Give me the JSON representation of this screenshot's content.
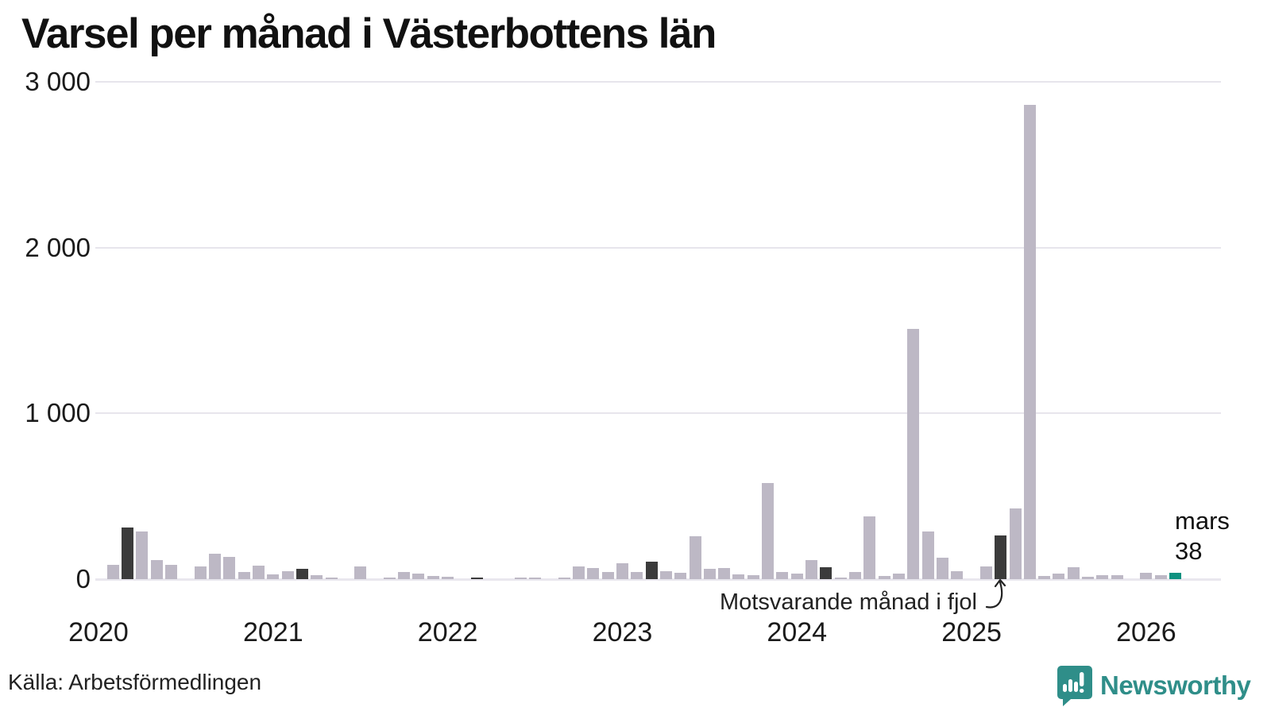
{
  "title": "Varsel per månad i Västerbottens län",
  "source": "Källa: Arbetsförmedlingen",
  "brand": {
    "name": "Newsworthy",
    "color": "#2f8e89"
  },
  "annotation": {
    "text": "Motsvarande månad i fjol"
  },
  "current_label": {
    "month": "mars",
    "value": "38"
  },
  "colors": {
    "bar": "#bdb8c5",
    "last_year_month": "#3b3b3b",
    "current_month": "#0e9180",
    "grid": "#e7e5ec",
    "text": "#111111"
  },
  "chart_data": {
    "type": "bar",
    "title": "Varsel per månad i Västerbottens län",
    "xlabel": "",
    "ylabel": "",
    "ylim": [
      0,
      3000
    ],
    "grid": "horizontal",
    "legend": "none",
    "yticks": [
      {
        "label": "0",
        "value": 0
      },
      {
        "label": "1 000",
        "value": 1000
      },
      {
        "label": "2 000",
        "value": 2000
      },
      {
        "label": "3 000",
        "value": 3000
      }
    ],
    "x_year_labels": [
      "2020",
      "2021",
      "2022",
      "2023",
      "2024",
      "2025",
      "2026"
    ],
    "highlight_x": [
      "2020-03",
      "2021-03",
      "2022-03",
      "2023-03",
      "2024-03",
      "2025-03"
    ],
    "current_x": "2026-03",
    "current_value": 38,
    "annotation_target_x": "2025-03",
    "series": [
      {
        "name": "Varsel per månad",
        "points": [
          {
            "x": "2020-01",
            "y": 0
          },
          {
            "x": "2020-02",
            "y": 85
          },
          {
            "x": "2020-03",
            "y": 310
          },
          {
            "x": "2020-04",
            "y": 290
          },
          {
            "x": "2020-05",
            "y": 115
          },
          {
            "x": "2020-06",
            "y": 85
          },
          {
            "x": "2020-07",
            "y": 0
          },
          {
            "x": "2020-08",
            "y": 75
          },
          {
            "x": "2020-09",
            "y": 155
          },
          {
            "x": "2020-10",
            "y": 135
          },
          {
            "x": "2020-11",
            "y": 45
          },
          {
            "x": "2020-12",
            "y": 80
          },
          {
            "x": "2021-01",
            "y": 30
          },
          {
            "x": "2021-02",
            "y": 48
          },
          {
            "x": "2021-03",
            "y": 60
          },
          {
            "x": "2021-04",
            "y": 24
          },
          {
            "x": "2021-05",
            "y": 10
          },
          {
            "x": "2021-06",
            "y": 0
          },
          {
            "x": "2021-07",
            "y": 77
          },
          {
            "x": "2021-08",
            "y": 0
          },
          {
            "x": "2021-09",
            "y": 10
          },
          {
            "x": "2021-10",
            "y": 43
          },
          {
            "x": "2021-11",
            "y": 35
          },
          {
            "x": "2021-12",
            "y": 21
          },
          {
            "x": "2022-01",
            "y": 14
          },
          {
            "x": "2022-02",
            "y": 0
          },
          {
            "x": "2022-03",
            "y": 10
          },
          {
            "x": "2022-04",
            "y": 0
          },
          {
            "x": "2022-05",
            "y": 0
          },
          {
            "x": "2022-06",
            "y": 11
          },
          {
            "x": "2022-07",
            "y": 5
          },
          {
            "x": "2022-08",
            "y": 0
          },
          {
            "x": "2022-09",
            "y": 8
          },
          {
            "x": "2022-10",
            "y": 75
          },
          {
            "x": "2022-11",
            "y": 67
          },
          {
            "x": "2022-12",
            "y": 45
          },
          {
            "x": "2023-01",
            "y": 95
          },
          {
            "x": "2023-02",
            "y": 41
          },
          {
            "x": "2023-03",
            "y": 105
          },
          {
            "x": "2023-04",
            "y": 49
          },
          {
            "x": "2023-05",
            "y": 40
          },
          {
            "x": "2023-06",
            "y": 260
          },
          {
            "x": "2023-07",
            "y": 64
          },
          {
            "x": "2023-08",
            "y": 65
          },
          {
            "x": "2023-09",
            "y": 29
          },
          {
            "x": "2023-10",
            "y": 25
          },
          {
            "x": "2023-11",
            "y": 580
          },
          {
            "x": "2023-12",
            "y": 45
          },
          {
            "x": "2024-01",
            "y": 32
          },
          {
            "x": "2024-02",
            "y": 115
          },
          {
            "x": "2024-03",
            "y": 70
          },
          {
            "x": "2024-04",
            "y": 11
          },
          {
            "x": "2024-05",
            "y": 45
          },
          {
            "x": "2024-06",
            "y": 380
          },
          {
            "x": "2024-07",
            "y": 19
          },
          {
            "x": "2024-08",
            "y": 32
          },
          {
            "x": "2024-09",
            "y": 1510
          },
          {
            "x": "2024-10",
            "y": 290
          },
          {
            "x": "2024-11",
            "y": 130
          },
          {
            "x": "2024-12",
            "y": 50
          },
          {
            "x": "2025-01",
            "y": 0
          },
          {
            "x": "2025-02",
            "y": 78
          },
          {
            "x": "2025-03",
            "y": 265
          },
          {
            "x": "2025-04",
            "y": 425
          },
          {
            "x": "2025-05",
            "y": 2860
          },
          {
            "x": "2025-06",
            "y": 19
          },
          {
            "x": "2025-07",
            "y": 35
          },
          {
            "x": "2025-08",
            "y": 72
          },
          {
            "x": "2025-09",
            "y": 12
          },
          {
            "x": "2025-10",
            "y": 24
          },
          {
            "x": "2025-11",
            "y": 24
          },
          {
            "x": "2025-12",
            "y": 0
          },
          {
            "x": "2026-01",
            "y": 40
          },
          {
            "x": "2026-02",
            "y": 24
          },
          {
            "x": "2026-03",
            "y": 38
          }
        ]
      }
    ]
  }
}
